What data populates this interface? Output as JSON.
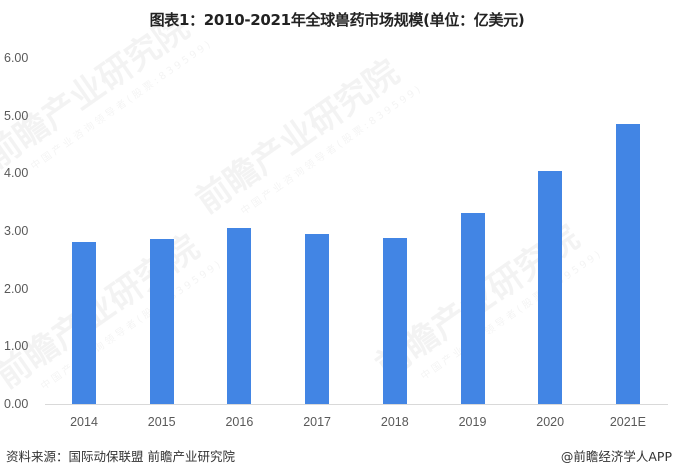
{
  "title": "图表1：2010-2021年全球兽药市场规模(单位：亿美元)",
  "watermark": {
    "text": "前瞻产业研究院",
    "subtext": "中国产业咨询领导者(股票:839599)"
  },
  "footer": {
    "source": "资料来源：国际动保联盟 前瞻产业研究院",
    "credit": "@前瞻经济学人APP"
  },
  "colors": {
    "bar": "#4285e4",
    "axis": "#d9d9d9",
    "tick_text": "#595959"
  },
  "chart_data": {
    "type": "bar",
    "title": "图表1：2010-2021年全球兽药市场规模(单位：亿美元)",
    "xlabel": "",
    "ylabel": "",
    "categories": [
      "2014",
      "2015",
      "2016",
      "2017",
      "2018",
      "2019",
      "2020",
      "2021E"
    ],
    "series": [
      {
        "name": "全球兽药市场规模（亿美元）",
        "values": [
          2.81,
          2.86,
          3.06,
          2.95,
          2.88,
          3.31,
          4.04,
          4.85
        ]
      }
    ],
    "values": [
      2.81,
      2.86,
      3.06,
      2.95,
      2.88,
      3.31,
      4.04,
      4.85
    ],
    "ylim": [
      0,
      6
    ],
    "yticks": [
      "0.00",
      "1.00",
      "2.00",
      "3.00",
      "4.00",
      "5.00",
      "6.00"
    ],
    "grid": false,
    "legend": "none"
  }
}
